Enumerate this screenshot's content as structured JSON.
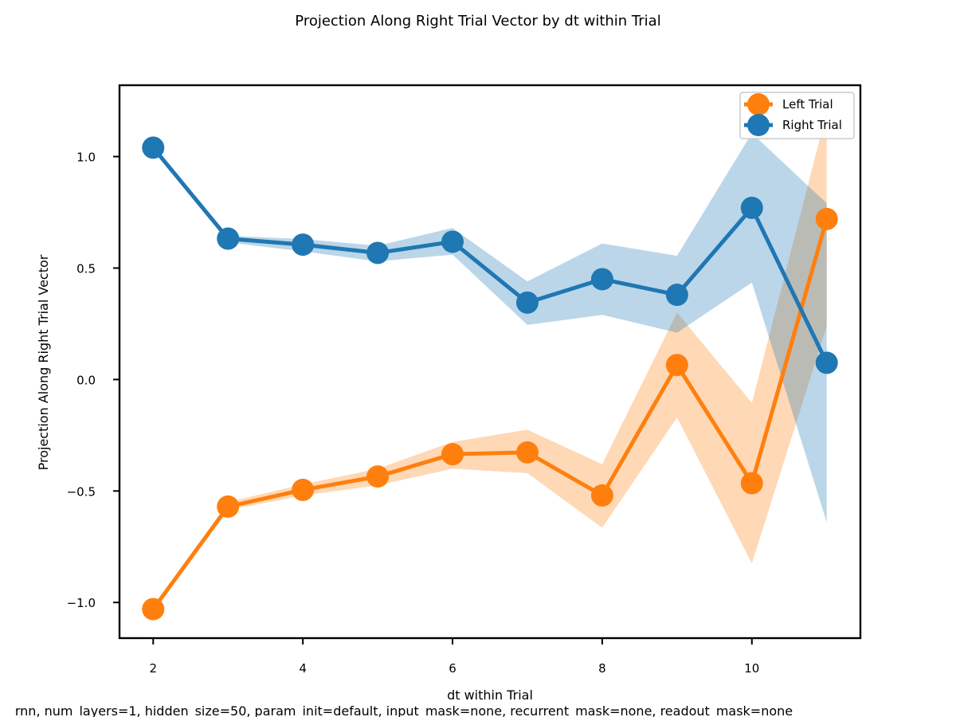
{
  "chart_data": {
    "type": "line",
    "title": "Projection Along Right Trial Vector by dt within Trial",
    "xlabel": "dt within Trial",
    "ylabel": "Projection Along Right Trial Vector",
    "footer": "rnn, num_layers=1, hidden_size=50, param_init=default, input_mask=none, recurrent_mask=none, readout_mask=none",
    "xlim": [
      1.55,
      11.45
    ],
    "ylim": [
      -1.16,
      1.32
    ],
    "xticks": [
      2,
      4,
      6,
      8,
      10
    ],
    "xtick_labels": [
      "2",
      "4",
      "6",
      "8",
      "10"
    ],
    "yticks": [
      -1.0,
      -0.5,
      0.0,
      0.5,
      1.0
    ],
    "ytick_labels": [
      "−1.0",
      "−0.5",
      "0.0",
      "0.5",
      "1.0"
    ],
    "grid": false,
    "legend_position": "top-right",
    "x": [
      2,
      3,
      4,
      5,
      6,
      7,
      8,
      9,
      10,
      11
    ],
    "series": [
      {
        "name": "Left Trial",
        "color": "#ff7f0e",
        "band_color": "#ffd2ad",
        "values": [
          -1.03,
          -0.57,
          -0.495,
          -0.435,
          -0.335,
          -0.327,
          -0.52,
          0.065,
          -0.465,
          0.72
        ],
        "lower": [
          -1.03,
          -0.585,
          -0.52,
          -0.475,
          -0.4,
          -0.42,
          -0.665,
          -0.17,
          -0.825,
          0.24
        ],
        "upper": [
          -1.03,
          -0.55,
          -0.47,
          -0.4,
          -0.28,
          -0.225,
          -0.38,
          0.3,
          -0.105,
          1.2
        ]
      },
      {
        "name": "Right Trial",
        "color": "#1f77b4",
        "band_color": "#b8d4e8",
        "values": [
          1.04,
          0.632,
          0.605,
          0.568,
          0.618,
          0.345,
          0.45,
          0.38,
          0.77,
          0.075
        ],
        "lower": [
          1.04,
          0.615,
          0.575,
          0.53,
          0.56,
          0.245,
          0.29,
          0.21,
          0.435,
          -0.64
        ],
        "upper": [
          1.04,
          0.645,
          0.63,
          0.6,
          0.68,
          0.44,
          0.61,
          0.555,
          1.105,
          0.79
        ]
      }
    ]
  }
}
